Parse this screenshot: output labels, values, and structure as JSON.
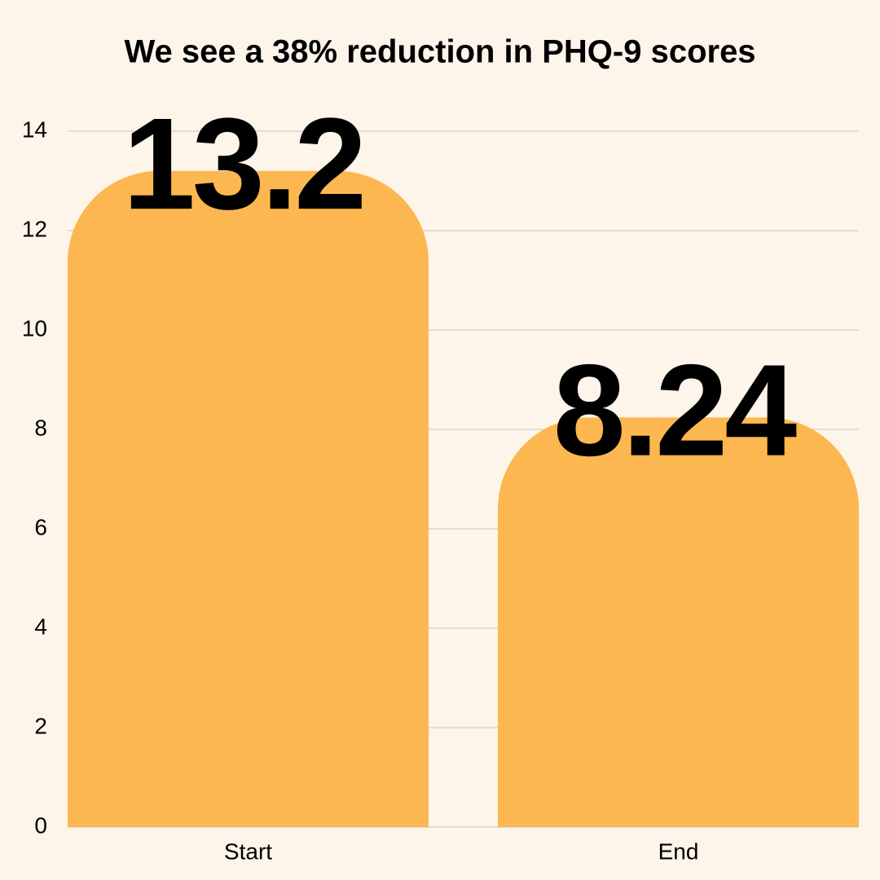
{
  "chart_data": {
    "type": "bar",
    "title": "We see a 38% reduction in PHQ-9 scores",
    "categories": [
      "Start",
      "End"
    ],
    "values": [
      13.2,
      8.24
    ],
    "color": "#fdb750",
    "ylim": [
      0,
      14
    ],
    "yticks": [
      0,
      2,
      4,
      6,
      8,
      10,
      12,
      14
    ],
    "grid": true
  }
}
